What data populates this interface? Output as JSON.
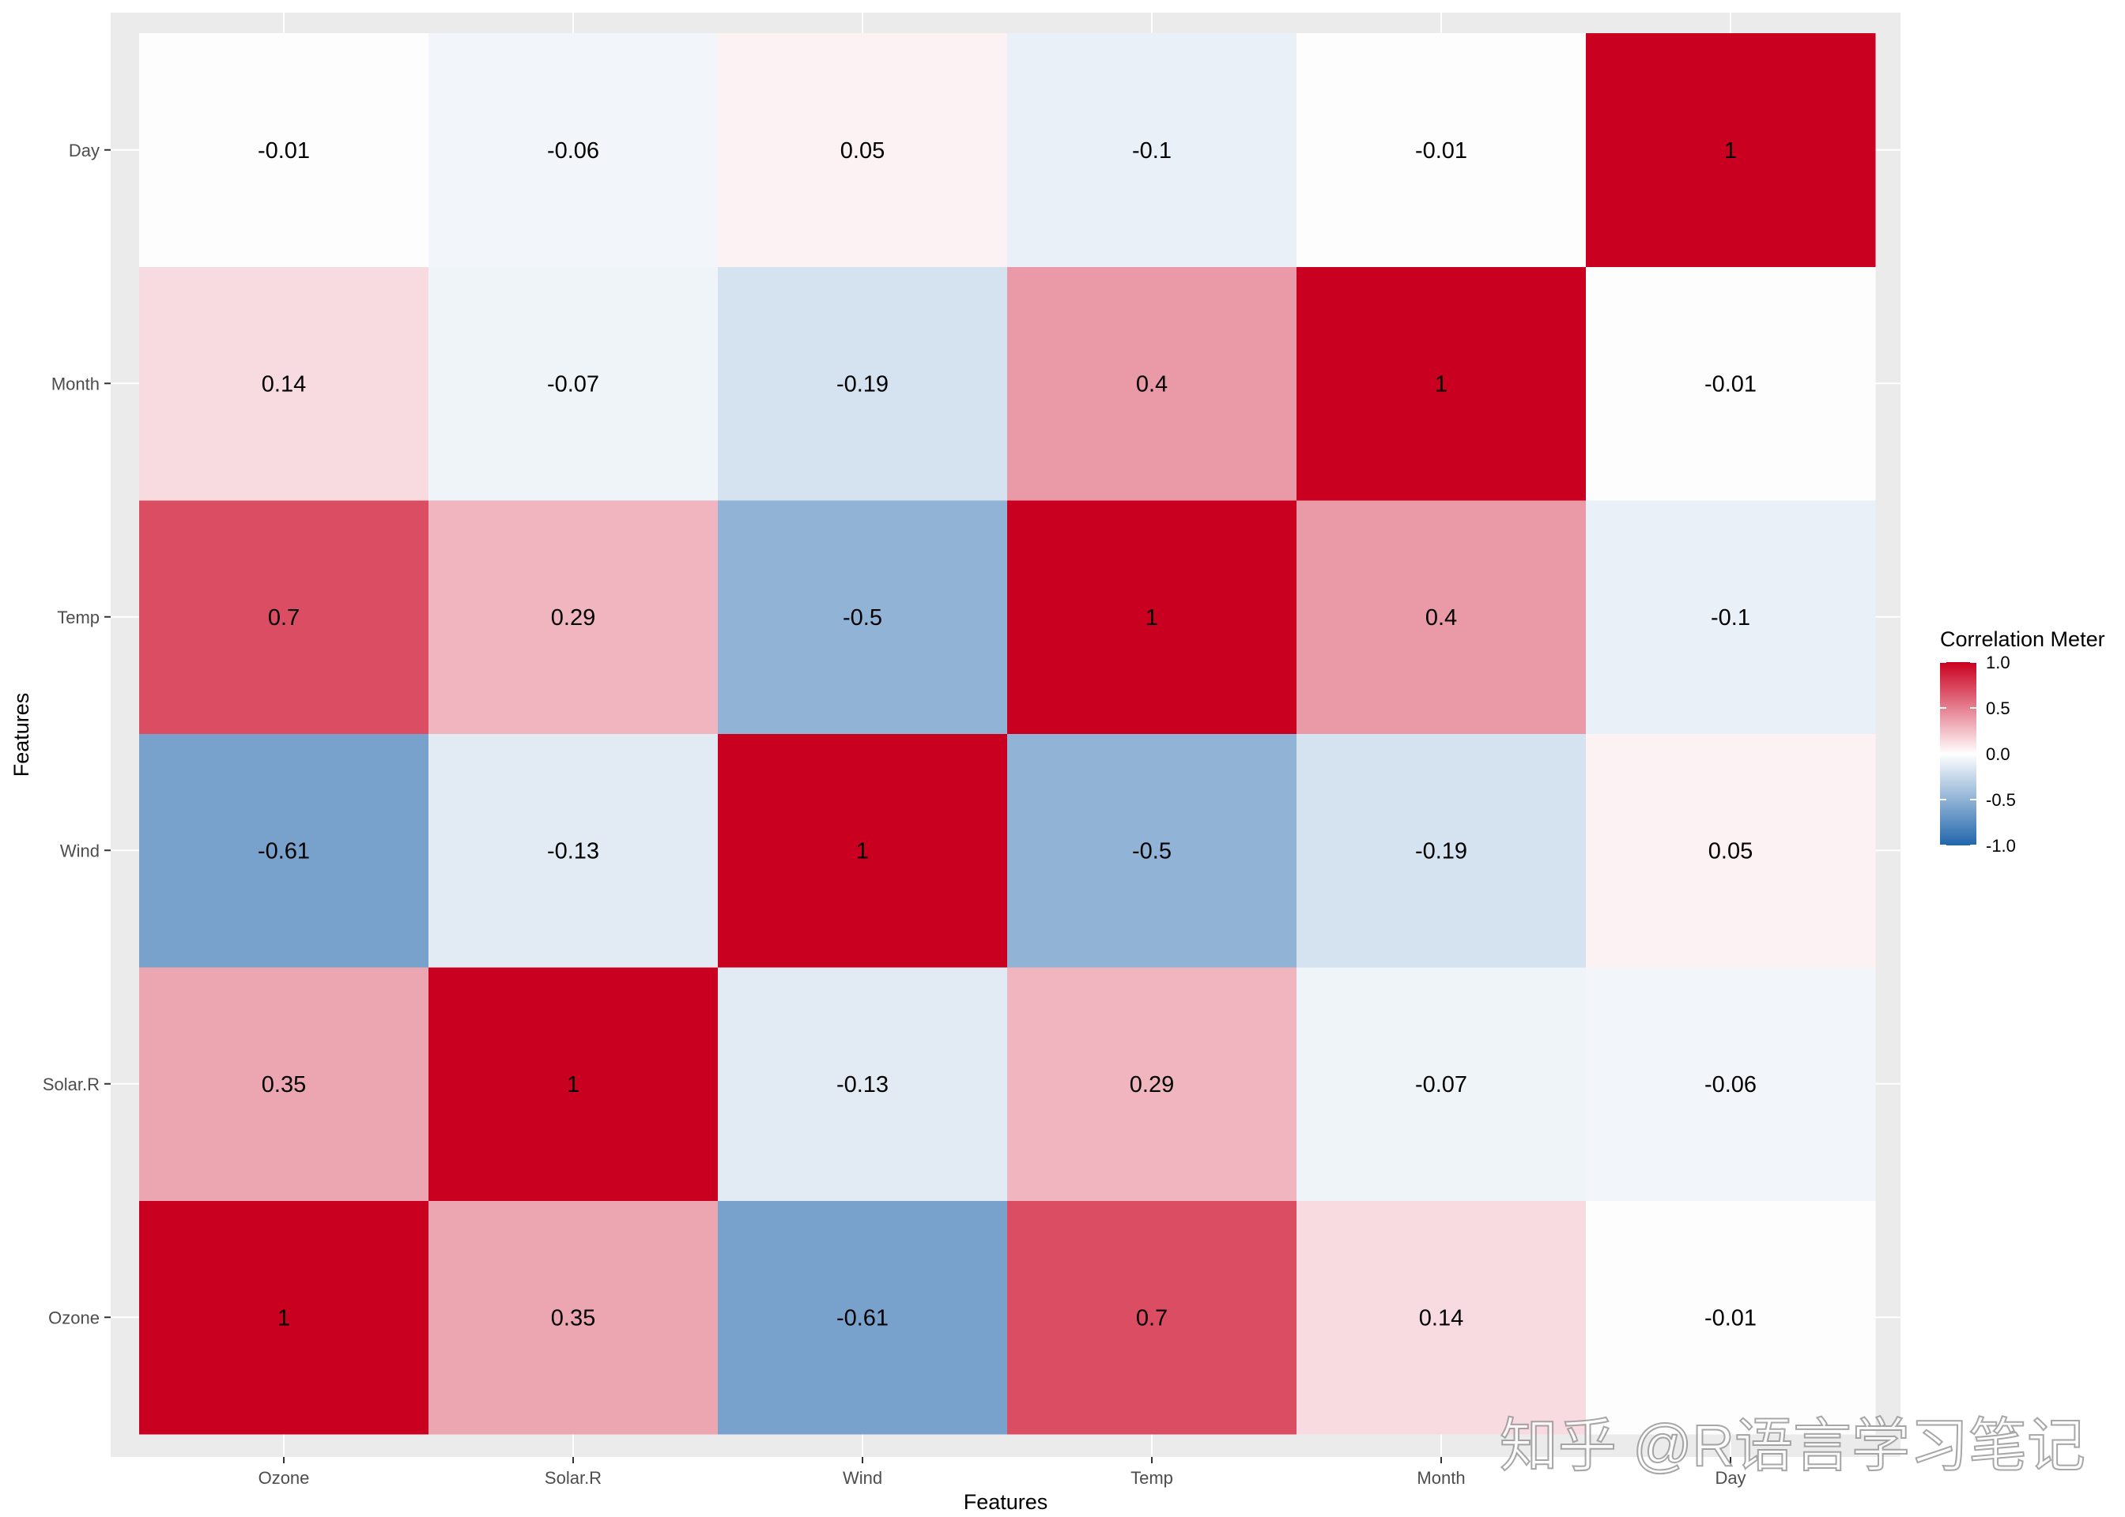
{
  "chart_data": {
    "type": "heatmap",
    "xlabel": "Features",
    "ylabel": "Features",
    "x_categories": [
      "Ozone",
      "Solar.R",
      "Wind",
      "Temp",
      "Month",
      "Day"
    ],
    "y_categories": [
      "Ozone",
      "Solar.R",
      "Wind",
      "Temp",
      "Month",
      "Day"
    ],
    "matrix": [
      [
        1,
        0.35,
        -0.61,
        0.7,
        0.14,
        -0.01
      ],
      [
        0.35,
        1,
        -0.13,
        0.29,
        -0.07,
        -0.06
      ],
      [
        -0.61,
        -0.13,
        1,
        -0.5,
        -0.19,
        0.05
      ],
      [
        0.7,
        0.29,
        -0.5,
        1,
        0.4,
        -0.1
      ],
      [
        0.14,
        -0.07,
        -0.19,
        0.4,
        1,
        -0.01
      ],
      [
        -0.01,
        -0.06,
        0.05,
        -0.1,
        -0.01,
        1
      ]
    ],
    "legend": {
      "title": "Correlation Meter",
      "ticks": [
        "1.0",
        "0.5",
        "0.0",
        "-0.5",
        "-1.0"
      ],
      "range": [
        -1,
        1
      ],
      "placement": "right"
    },
    "color_scale": {
      "low": "#2166ac",
      "mid": "#ffffff",
      "high": "#ca0020"
    },
    "panel_background": "#ebebeb",
    "grid": true
  },
  "watermark": {
    "text": "知乎 @R语言学习笔记"
  }
}
